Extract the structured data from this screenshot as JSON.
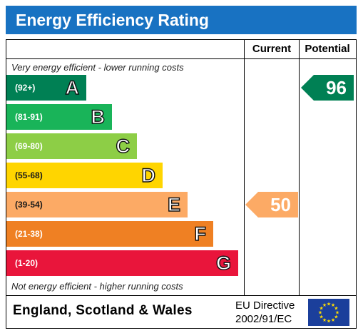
{
  "header": {
    "title": "Energy Efficiency Rating",
    "background": "#1872c2"
  },
  "columns": {
    "current": "Current",
    "potential": "Potential"
  },
  "captions": {
    "top": "Very energy efficient - lower running costs",
    "bottom": "Not energy efficient - higher running costs"
  },
  "bands": [
    {
      "range": "(92+)",
      "letter": "A",
      "color": "#008054"
    },
    {
      "range": "(81-91)",
      "letter": "B",
      "color": "#19b459"
    },
    {
      "range": "(69-80)",
      "letter": "C",
      "color": "#8dce46"
    },
    {
      "range": "(55-68)",
      "letter": "D",
      "color": "#ffd500"
    },
    {
      "range": "(39-54)",
      "letter": "E",
      "color": "#fcaa65"
    },
    {
      "range": "(21-38)",
      "letter": "F",
      "color": "#ef8023"
    },
    {
      "range": "(1-20)",
      "letter": "G",
      "color": "#e9153b"
    }
  ],
  "ratings": {
    "current": {
      "value": "50",
      "band": "E",
      "color": "#fcaa65"
    },
    "potential": {
      "value": "96",
      "band": "A",
      "color": "#008054"
    }
  },
  "footer": {
    "region": "England, Scotland & Wales",
    "directive_line1": "EU Directive",
    "directive_line2": "2002/91/EC",
    "flag_color": "#1b3f9b",
    "star_color": "#ffdd00"
  }
}
